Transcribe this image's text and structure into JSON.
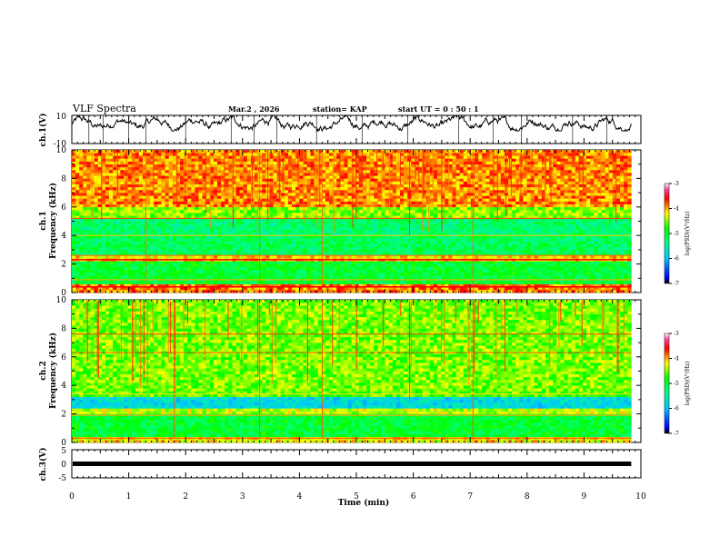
{
  "header": {
    "title": "VLF Spectra",
    "date": "Mar.2  , 2026",
    "station": "station= KAP",
    "start_ut": "start  UT  =   0  : 50 : 1"
  },
  "chart_data": [
    {
      "type": "line",
      "panel": "ch1-waveform",
      "ylabel": "ch.1(V)",
      "ylim": [
        -10,
        10
      ],
      "yticks": [
        "10",
        "-10"
      ],
      "xlim": [
        0,
        10
      ],
      "x_end": 9.83,
      "mean": 4,
      "amplitude_range": [
        -1,
        10
      ]
    },
    {
      "type": "heatmap",
      "panel": "ch1-spectrogram",
      "ylabel": "ch.1\nFrequency  (kHz)",
      "ylim": [
        0,
        10
      ],
      "yticks": [
        "0",
        "2",
        "4",
        "6",
        "8",
        "10"
      ],
      "xlim": [
        0,
        10
      ],
      "x_end": 9.83,
      "colorbar": {
        "label": "log(PSD)(V²/Hz)",
        "range": [
          -7,
          -3
        ],
        "ticks": [
          "-3",
          "-4",
          "-5",
          "-6",
          "-7"
        ]
      },
      "bands_note": "high-PSD (red/yellow) above 5.5 kHz, lower PSD (green/cyan) 0-5 kHz, horizontal lines near 0.4, 2.3, 4.0 kHz"
    },
    {
      "type": "heatmap",
      "panel": "ch2-spectrogram",
      "ylabel": "ch.2\nFrequency  (kHz)",
      "ylim": [
        0,
        10
      ],
      "yticks": [
        "0",
        "2",
        "4",
        "6",
        "8",
        "10"
      ],
      "xlim": [
        0,
        10
      ],
      "x_end": 9.83,
      "colorbar": {
        "label": "log(PSD)(V²/Hz)",
        "range": [
          -7,
          -3
        ],
        "ticks": [
          "-3",
          "-4",
          "-5",
          "-6",
          "-7"
        ]
      },
      "bands_note": "yellow/green 3-10 kHz, blue/cyan 2-3 kHz, green 0-2 kHz"
    },
    {
      "type": "line",
      "panel": "ch3-waveform",
      "ylabel": "ch.3(V)",
      "ylim": [
        -5,
        5
      ],
      "yticks": [
        "5",
        "0",
        "-5"
      ],
      "xlim": [
        0,
        10
      ],
      "x_end": 9.83,
      "level": 0
    }
  ],
  "xaxis": {
    "label": "Time  (min)",
    "ticks": [
      "0",
      "1",
      "2",
      "3",
      "4",
      "5",
      "6",
      "7",
      "8",
      "9",
      "10"
    ]
  }
}
